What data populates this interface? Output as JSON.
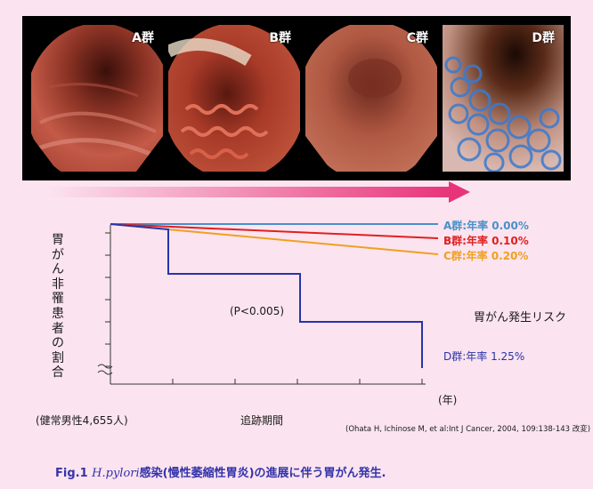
{
  "photos": [
    {
      "label": "A群"
    },
    {
      "label": "B群"
    },
    {
      "label": "C群"
    },
    {
      "label": "D群"
    }
  ],
  "chart": {
    "y_label": "胃がん非罹患者の割合",
    "x_unit": "(年)",
    "x_label": "追跡期間",
    "cohort": "(健常男性4,655人)",
    "p_value": "(P<0.005)",
    "risk_title": "胃がん発生リスク",
    "series": [
      {
        "name": "A群:年率 0.00%",
        "color": "#4a90c8"
      },
      {
        "name": "B群:年率 0.10%",
        "color": "#e02020"
      },
      {
        "name": "C群:年率 0.20%",
        "color": "#f0a020"
      },
      {
        "name": "D群:年率 1.25%",
        "color": "#2a33a8"
      }
    ]
  },
  "source": "(Ohata H, Ichinose M, et al:Int J Cancer, 2004, 109:138-143 改変)",
  "caption": {
    "prefix": "Fig.1",
    "organism": "H.pylori",
    "text": "感染(慢性萎縮性胃炎)の進展に伴う胃がん発生."
  }
}
